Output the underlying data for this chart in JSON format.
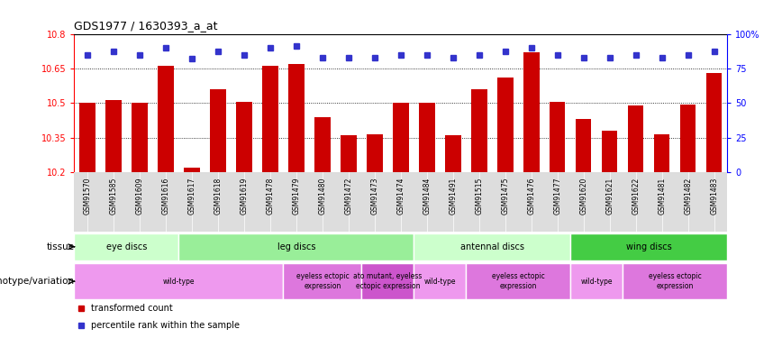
{
  "title": "GDS1977 / 1630393_a_at",
  "samples": [
    "GSM91570",
    "GSM91585",
    "GSM91609",
    "GSM91616",
    "GSM91617",
    "GSM91618",
    "GSM91619",
    "GSM91478",
    "GSM91479",
    "GSM91480",
    "GSM91472",
    "GSM91473",
    "GSM91474",
    "GSM91484",
    "GSM91491",
    "GSM91515",
    "GSM91475",
    "GSM91476",
    "GSM91477",
    "GSM91620",
    "GSM91621",
    "GSM91622",
    "GSM91481",
    "GSM91482",
    "GSM91483"
  ],
  "bar_values": [
    10.5,
    10.515,
    10.5,
    10.66,
    10.22,
    10.56,
    10.505,
    10.66,
    10.67,
    10.44,
    10.36,
    10.365,
    10.5,
    10.5,
    10.36,
    10.56,
    10.61,
    10.72,
    10.505,
    10.43,
    10.38,
    10.49,
    10.365,
    10.495,
    10.63
  ],
  "percentile_values": [
    85,
    87,
    85,
    90,
    82,
    87,
    85,
    90,
    91,
    83,
    83,
    83,
    85,
    85,
    83,
    85,
    87,
    90,
    85,
    83,
    83,
    85,
    83,
    85,
    87
  ],
  "ymin": 10.2,
  "ymax": 10.8,
  "yticks": [
    10.2,
    10.35,
    10.5,
    10.65,
    10.8
  ],
  "right_yticks": [
    0,
    25,
    50,
    75,
    100
  ],
  "bar_color": "#cc0000",
  "dot_color": "#3333cc",
  "tissue_row": [
    {
      "label": "eye discs",
      "start": 0,
      "end": 4,
      "color": "#ccffcc"
    },
    {
      "label": "leg discs",
      "start": 4,
      "end": 13,
      "color": "#99ee99"
    },
    {
      "label": "antennal discs",
      "start": 13,
      "end": 19,
      "color": "#ccffcc"
    },
    {
      "label": "wing discs",
      "start": 19,
      "end": 25,
      "color": "#44cc44"
    }
  ],
  "genotype_row": [
    {
      "label": "wild-type",
      "start": 0,
      "end": 8,
      "color": "#ee99ee"
    },
    {
      "label": "eyeless ectopic\nexpression",
      "start": 8,
      "end": 11,
      "color": "#dd77dd"
    },
    {
      "label": "ato mutant, eyeless\nectopic expression",
      "start": 11,
      "end": 13,
      "color": "#cc55cc"
    },
    {
      "label": "wild-type",
      "start": 13,
      "end": 15,
      "color": "#ee99ee"
    },
    {
      "label": "eyeless ectopic\nexpression",
      "start": 15,
      "end": 19,
      "color": "#dd77dd"
    },
    {
      "label": "wild-type",
      "start": 19,
      "end": 21,
      "color": "#ee99ee"
    },
    {
      "label": "eyeless ectopic\nexpression",
      "start": 21,
      "end": 25,
      "color": "#dd77dd"
    }
  ],
  "bg_color": "#ffffff",
  "chart_bg": "#ffffff",
  "grid_color": "#aaaaaa"
}
